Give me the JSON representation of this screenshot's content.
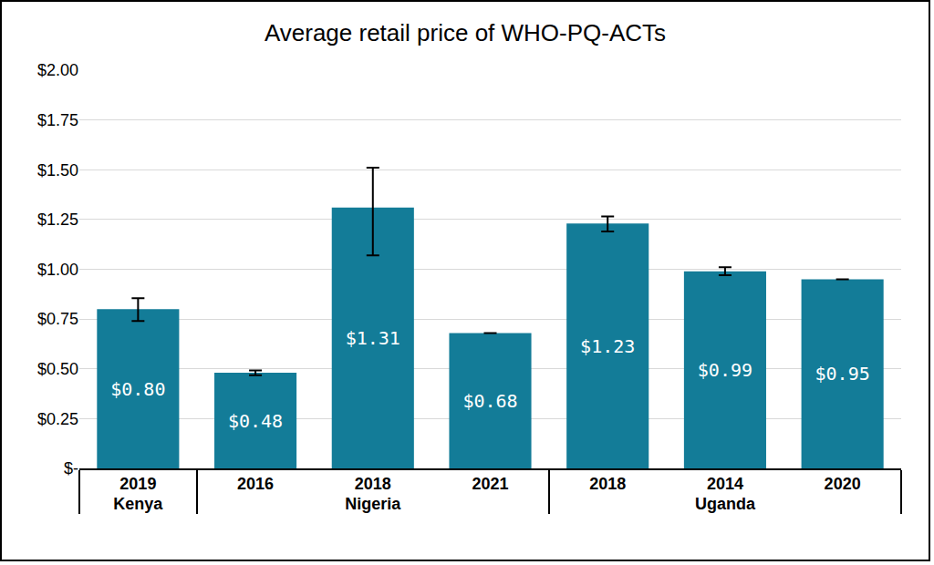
{
  "chart_data": {
    "type": "bar",
    "title": "Average retail price of WHO-PQ-ACTs",
    "categories": [
      "2019",
      "2016",
      "2018",
      "2021",
      "2014",
      "2018",
      "2020"
    ],
    "groups": [
      "Kenya",
      "Nigeria",
      "Nigeria",
      "Nigeria",
      "Uganda",
      "Uganda",
      "Uganda"
    ],
    "values": [
      0.8,
      0.48,
      1.31,
      0.68,
      0.99,
      1.23,
      0.95
    ],
    "value_labels": [
      "$0.80",
      "$0.48",
      "$1.31",
      "$0.68",
      "$0.99",
      "$1.23",
      "$0.95"
    ],
    "error_plus": [
      0.055,
      0.012,
      0.2,
      null,
      0.02,
      0.035,
      null
    ],
    "error_minus": [
      0.06,
      0.012,
      0.24,
      null,
      0.02,
      0.04,
      null
    ],
    "color": "#137c98",
    "ylim": [
      0,
      2
    ],
    "yticks": [
      {
        "value": 0,
        "label": "$-"
      },
      {
        "value": 0.25,
        "label": "$0.25"
      },
      {
        "value": 0.5,
        "label": "$0.50"
      },
      {
        "value": 0.75,
        "label": "$0.75"
      },
      {
        "value": 1,
        "label": "$1.00"
      },
      {
        "value": 1.25,
        "label": "$1.25"
      },
      {
        "value": 1.5,
        "label": "$1.50"
      },
      {
        "value": 1.75,
        "label": "$1.75"
      },
      {
        "value": 2,
        "label": "$2.00"
      }
    ],
    "grid": true,
    "data_labels": true
  }
}
